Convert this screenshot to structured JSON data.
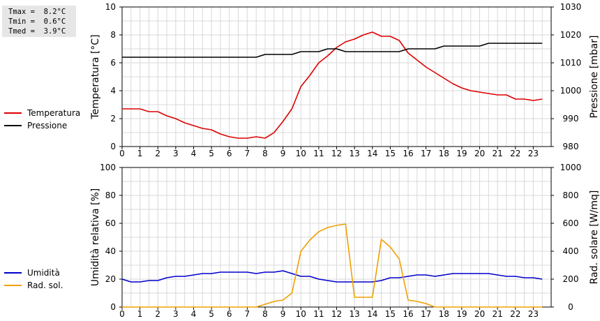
{
  "stats": {
    "tmax": "Tmax =  8.2°C",
    "tmin": "Tmin =  0.6°C",
    "tmed": "Tmed =  3.9°C"
  },
  "chart_data": [
    {
      "type": "line",
      "xlabel": "",
      "xlim": [
        0,
        24
      ],
      "x_ticks": [
        0,
        1,
        2,
        3,
        4,
        5,
        6,
        7,
        8,
        9,
        10,
        11,
        12,
        13,
        14,
        15,
        16,
        17,
        18,
        19,
        20,
        21,
        22,
        23
      ],
      "ylabel": "Temperatura [°C]",
      "ylim": [
        0,
        10
      ],
      "y_ticks": [
        0,
        2,
        4,
        6,
        8,
        10
      ],
      "y2label": "Pressione [mbar]",
      "y2lim": [
        980,
        1030
      ],
      "y2_ticks": [
        980,
        990,
        1000,
        1010,
        1020,
        1030
      ],
      "grid": true,
      "legend_position": "left",
      "series": [
        {
          "name": "Temperatura",
          "axis": "left",
          "color": "#dd0000",
          "x": [
            0,
            0.5,
            1,
            1.5,
            2,
            2.5,
            3,
            3.5,
            4,
            4.5,
            5,
            5.5,
            6,
            6.5,
            7,
            7.5,
            8,
            8.5,
            9,
            9.5,
            10,
            10.5,
            11,
            11.5,
            12,
            12.5,
            13,
            13.5,
            14,
            14.5,
            15,
            15.5,
            16,
            16.5,
            17,
            17.5,
            18,
            18.5,
            19,
            19.5,
            20,
            20.5,
            21,
            21.5,
            22,
            22.5,
            23,
            23.5
          ],
          "y": [
            2.7,
            2.7,
            2.7,
            2.5,
            2.5,
            2.2,
            2.0,
            1.7,
            1.5,
            1.3,
            1.2,
            0.9,
            0.7,
            0.6,
            0.6,
            0.7,
            0.6,
            1.0,
            1.8,
            2.7,
            4.3,
            5.1,
            6.0,
            6.5,
            7.1,
            7.5,
            7.7,
            8.0,
            8.2,
            7.9,
            7.9,
            7.6,
            6.7,
            6.2,
            5.7,
            5.3,
            4.9,
            4.5,
            4.2,
            4.0,
            3.9,
            3.8,
            3.7,
            3.7,
            3.4,
            3.4,
            3.3,
            3.4
          ]
        },
        {
          "name": "Pressione",
          "axis": "right",
          "color": "#000000",
          "x": [
            0,
            0.5,
            1,
            1.5,
            2,
            2.5,
            3,
            3.5,
            4,
            4.5,
            5,
            5.5,
            6,
            6.5,
            7,
            7.5,
            8,
            8.5,
            9,
            9.5,
            10,
            10.5,
            11,
            11.5,
            12,
            12.5,
            13,
            13.5,
            14,
            14.5,
            15,
            15.5,
            16,
            16.5,
            17,
            17.5,
            18,
            18.5,
            19,
            19.5,
            20,
            20.5,
            21,
            21.5,
            22,
            22.5,
            23,
            23.5
          ],
          "y": [
            1012,
            1012,
            1012,
            1012,
            1012,
            1012,
            1012,
            1012,
            1012,
            1012,
            1012,
            1012,
            1012,
            1012,
            1012,
            1012,
            1013,
            1013,
            1013,
            1013,
            1014,
            1014,
            1014,
            1015,
            1015,
            1014,
            1014,
            1014,
            1014,
            1014,
            1014,
            1014,
            1015,
            1015,
            1015,
            1015,
            1016,
            1016,
            1016,
            1016,
            1016,
            1017,
            1017,
            1017,
            1017,
            1017,
            1017,
            1017
          ]
        }
      ]
    },
    {
      "type": "line",
      "xlabel": "",
      "xlim": [
        0,
        24
      ],
      "x_ticks": [
        0,
        1,
        2,
        3,
        4,
        5,
        6,
        7,
        8,
        9,
        10,
        11,
        12,
        13,
        14,
        15,
        16,
        17,
        18,
        19,
        20,
        21,
        22,
        23
      ],
      "ylabel": "Umidità relativa [%]",
      "ylim": [
        0,
        100
      ],
      "y_ticks": [
        0,
        20,
        40,
        60,
        80,
        100
      ],
      "y2label": "Rad. solare [W/mq]",
      "y2lim": [
        0,
        1000
      ],
      "y2_ticks": [
        0,
        200,
        400,
        600,
        800,
        1000
      ],
      "grid": true,
      "legend_position": "left",
      "series": [
        {
          "name": "Umidità",
          "axis": "left",
          "color": "#0000cc",
          "x": [
            0,
            0.5,
            1,
            1.5,
            2,
            2.5,
            3,
            3.5,
            4,
            4.5,
            5,
            5.5,
            6,
            6.5,
            7,
            7.5,
            8,
            8.5,
            9,
            9.5,
            10,
            10.5,
            11,
            11.5,
            12,
            12.5,
            13,
            13.5,
            14,
            14.5,
            15,
            15.5,
            16,
            16.5,
            17,
            17.5,
            18,
            18.5,
            19,
            19.5,
            20,
            20.5,
            21,
            21.5,
            22,
            22.5,
            23,
            23.5
          ],
          "y": [
            20,
            18,
            18,
            19,
            19,
            21,
            22,
            22,
            23,
            24,
            24,
            25,
            25,
            25,
            25,
            24,
            25,
            25,
            26,
            24,
            22,
            22,
            20,
            19,
            18,
            18,
            18,
            18,
            18,
            19,
            21,
            21,
            22,
            23,
            23,
            22,
            23,
            24,
            24,
            24,
            24,
            24,
            23,
            22,
            22,
            21,
            21,
            20
          ]
        },
        {
          "name": "Rad. sol.",
          "axis": "right",
          "color": "#f0a000",
          "x": [
            0,
            1,
            2,
            3,
            4,
            5,
            6,
            7,
            7.5,
            8,
            8.5,
            9,
            9.5,
            10,
            10.5,
            11,
            11.5,
            12,
            12.5,
            13,
            13.5,
            14,
            14.5,
            15,
            15.5,
            16,
            16.5,
            17,
            17.5,
            18,
            19,
            20,
            21,
            22,
            23,
            23.5
          ],
          "y": [
            0,
            0,
            0,
            0,
            0,
            0,
            0,
            0,
            0,
            20,
            40,
            50,
            100,
            400,
            480,
            540,
            570,
            585,
            595,
            70,
            70,
            70,
            485,
            430,
            345,
            50,
            40,
            25,
            0,
            0,
            0,
            0,
            0,
            0,
            0,
            0
          ]
        }
      ]
    }
  ]
}
